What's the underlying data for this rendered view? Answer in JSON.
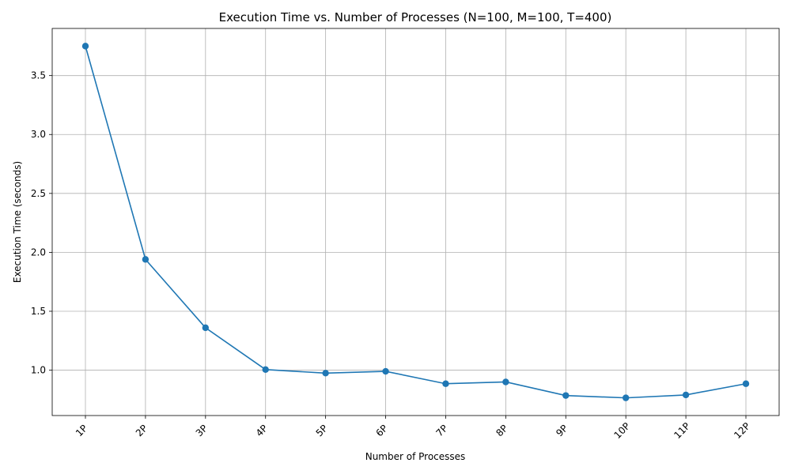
{
  "chart_data": {
    "type": "line",
    "title": "Execution Time vs. Number of Processes (N=100, M=100, T=400)",
    "xlabel": "Number of Processes",
    "ylabel": "Execution Time (seconds)",
    "categories": [
      "1P",
      "2P",
      "3P",
      "4P",
      "5P",
      "6P",
      "7P",
      "8P",
      "9P",
      "10P",
      "11P",
      "12P"
    ],
    "series": [
      {
        "values": [
          3.75,
          1.94,
          1.36,
          1.005,
          0.975,
          0.99,
          0.885,
          0.9,
          0.785,
          0.765,
          0.79,
          0.885
        ]
      }
    ],
    "y_ticks": [
      1.0,
      1.5,
      2.0,
      2.5,
      3.0,
      3.5
    ],
    "y_tick_labels": [
      "1.0",
      "1.5",
      "2.0",
      "2.5",
      "3.0",
      "3.5"
    ],
    "ylim": [
      0.615,
      3.9
    ],
    "grid": true,
    "line_color": "#1f77b4",
    "grid_color": "#b0b0b0"
  }
}
